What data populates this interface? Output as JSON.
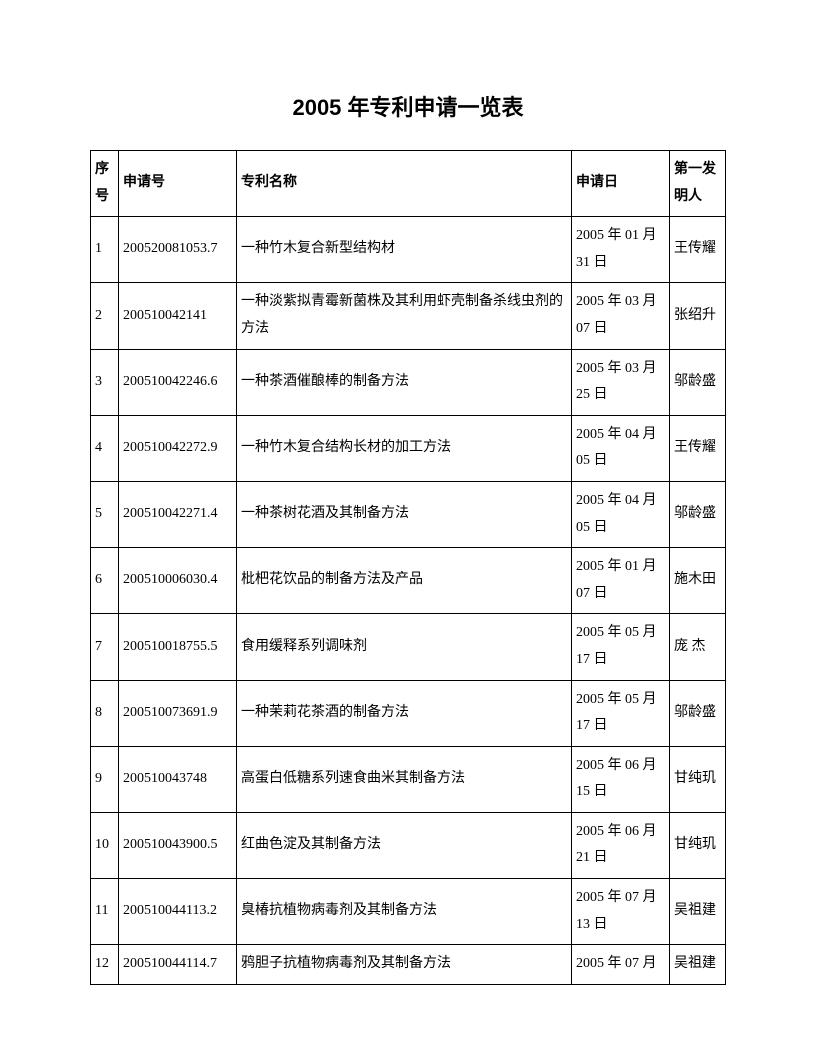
{
  "title": "2005 年专利申请一览表",
  "columns": [
    "序号",
    "申请号",
    "专利名称",
    "申请日",
    "第一发明人"
  ],
  "rows": [
    [
      "1",
      "200520081053.7",
      "一种竹木复合新型结构材",
      "2005 年 01 月 31 日",
      "王传耀"
    ],
    [
      "2",
      "200510042141",
      "一种淡紫拟青霉新菌株及其利用虾壳制备杀线虫剂的方法",
      "2005 年 03 月 07 日",
      "张绍升"
    ],
    [
      "3",
      "200510042246.6",
      "一种茶酒催酿棒的制备方法",
      "2005 年 03 月 25 日",
      "邬龄盛"
    ],
    [
      "4",
      "200510042272.9",
      "一种竹木复合结构长材的加工方法",
      "2005 年 04 月 05 日",
      "王传耀"
    ],
    [
      "5",
      "200510042271.4",
      "一种茶树花酒及其制备方法",
      "2005 年 04 月 05 日",
      "邬龄盛"
    ],
    [
      "6",
      "200510006030.4",
      "枇杷花饮品的制备方法及产品",
      "2005 年 01 月 07 日",
      "施木田"
    ],
    [
      "7",
      "200510018755.5",
      "食用缓释系列调味剂",
      "2005 年 05 月 17 日",
      "庞  杰"
    ],
    [
      "8",
      "200510073691.9",
      "一种茉莉花茶酒的制备方法",
      "2005 年 05 月 17 日",
      "邬龄盛"
    ],
    [
      "9",
      "200510043748",
      "高蛋白低糖系列速食曲米其制备方法",
      "2005 年 06 月 15 日",
      "甘纯玑"
    ],
    [
      "10",
      "200510043900.5",
      "红曲色淀及其制备方法",
      "2005 年 06 月 21 日",
      "甘纯玑"
    ],
    [
      "11",
      "200510044113.2",
      "臭椿抗植物病毒剂及其制备方法",
      "2005 年 07 月 13 日",
      "吴祖建"
    ],
    [
      "12",
      "200510044114.7",
      "鸦胆子抗植物病毒剂及其制备方法",
      "2005 年 07 月",
      "吴祖建"
    ]
  ]
}
